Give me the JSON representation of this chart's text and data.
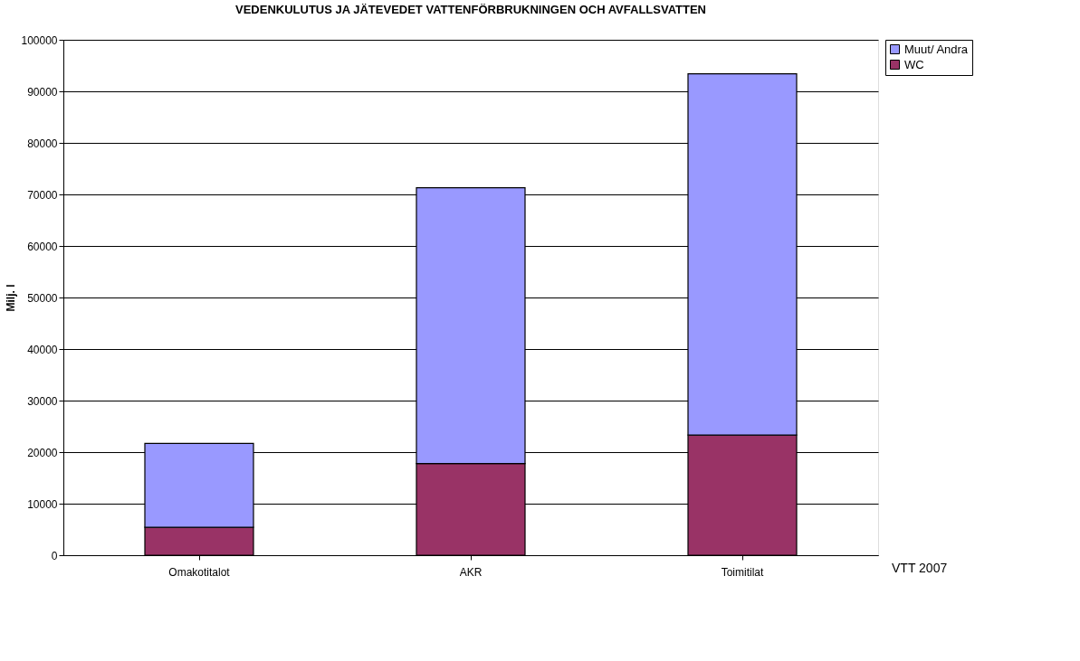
{
  "chart_data": {
    "type": "bar",
    "stacked": true,
    "title": "VEDENKULUTUS JA JÄTEVEDET VATTENFÖRBRUKNINGEN OCH AVFALLSVATTEN",
    "ylabel": "Milj. l",
    "categories": [
      "Omakotitalot",
      "AKR",
      "Toimitilat"
    ],
    "series": [
      {
        "name": "WC",
        "color": "#993366",
        "values": [
          5400,
          17800,
          23300
        ]
      },
      {
        "name": "Muut/ Andra",
        "color": "#9999ff",
        "values": [
          16300,
          53500,
          70100
        ]
      }
    ],
    "ylim": [
      0,
      100000
    ],
    "yticks": [
      0,
      10000,
      20000,
      30000,
      40000,
      50000,
      60000,
      70000,
      80000,
      90000,
      100000
    ],
    "grid": "y",
    "legend": "right",
    "annotations": [
      "VTT 2007"
    ]
  }
}
